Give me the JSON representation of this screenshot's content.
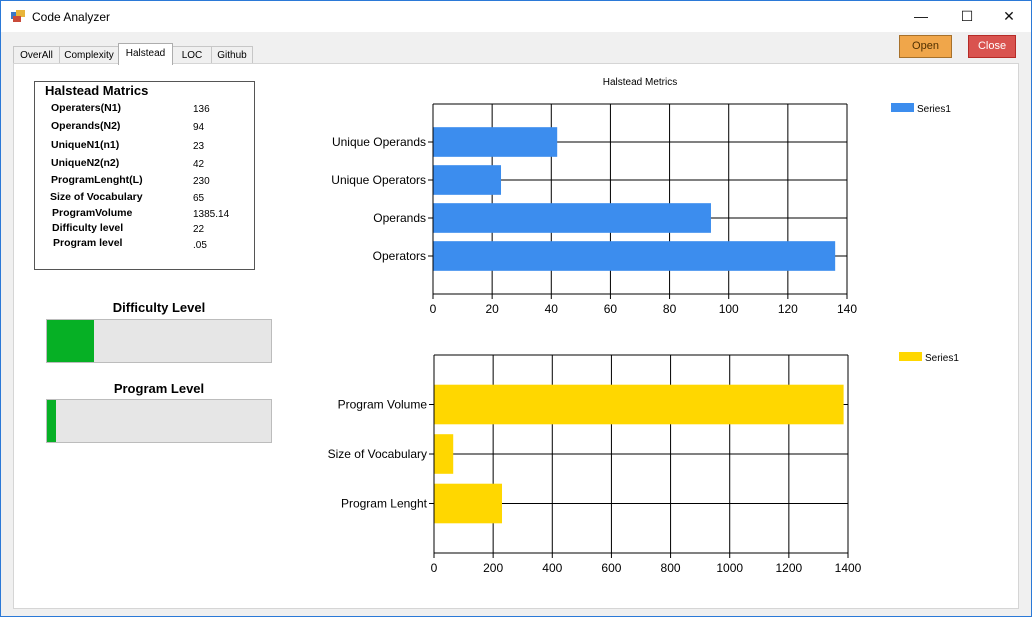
{
  "window": {
    "title": "Code Analyzer",
    "minimize": "—",
    "maximize": "☐",
    "close": "✕"
  },
  "tabs": [
    "OverAll",
    "Complexity",
    "Halstead",
    "LOC",
    "Github"
  ],
  "active_tab": "Halstead",
  "buttons": {
    "open": "Open",
    "close": "Close"
  },
  "matrics": {
    "title": "Halstead Matrics",
    "rows": [
      {
        "label": "Operaters(N1)",
        "value": "136"
      },
      {
        "label": "Operands(N2)",
        "value": "94"
      },
      {
        "label": "UniqueN1(n1)",
        "value": "23"
      },
      {
        "label": "UniqueN2(n2)",
        "value": "42"
      },
      {
        "label": "ProgramLenght(L)",
        "value": "230"
      },
      {
        "label": "Size of Vocabulary",
        "value": "65"
      },
      {
        "label": "ProgramVolume",
        "value": "1385.14"
      },
      {
        "label": "Difficulty level",
        "value": "22"
      },
      {
        "label": "Program level",
        "value": ".05"
      }
    ]
  },
  "levels": {
    "difficulty": {
      "label": "Difficulty Level",
      "progress": 0.21
    },
    "program": {
      "label": "Program Level",
      "progress": 0.04
    }
  },
  "chart_data": [
    {
      "type": "bar",
      "orientation": "horizontal",
      "title": "Halstead Metrics",
      "categories": [
        "Operators",
        "Operands",
        "Unique Operators",
        "Unique Operands"
      ],
      "series": [
        {
          "name": "Series1",
          "color": "#3c8dee",
          "values": [
            136,
            94,
            23,
            42
          ]
        }
      ],
      "xlim": [
        0,
        140
      ],
      "xticks": [
        0,
        20,
        40,
        60,
        80,
        100,
        120,
        140
      ],
      "grid": true,
      "legend": "top-right"
    },
    {
      "type": "bar",
      "orientation": "horizontal",
      "title": "",
      "categories": [
        "Program Lenght",
        "Size of Vocabulary",
        "Program Volume"
      ],
      "series": [
        {
          "name": "Series1",
          "color": "#ffd700",
          "values": [
            230,
            65,
            1385.14
          ]
        }
      ],
      "xlim": [
        0,
        1400
      ],
      "xticks": [
        0,
        200,
        400,
        600,
        800,
        1000,
        1200,
        1400
      ],
      "grid": true,
      "legend": "top-right"
    }
  ]
}
